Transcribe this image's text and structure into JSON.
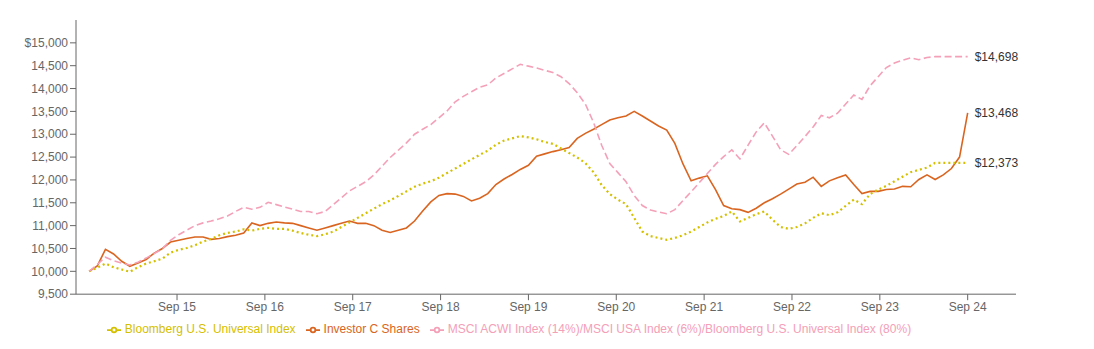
{
  "chart_data": {
    "type": "line",
    "x": [
      0,
      1,
      2,
      3,
      4,
      5,
      6,
      7,
      8,
      9,
      10,
      11,
      12,
      13,
      14,
      15,
      16,
      17,
      18,
      19,
      20,
      21,
      22,
      23,
      24,
      25,
      26,
      27,
      28,
      29,
      30,
      31,
      32,
      33,
      34,
      35,
      36,
      37,
      38,
      39,
      40,
      41,
      42,
      43,
      44,
      45,
      46,
      47,
      48,
      49,
      50,
      51,
      52,
      53,
      54,
      55,
      56,
      57,
      58,
      59,
      60,
      61,
      62,
      63,
      64,
      65,
      66,
      67,
      68,
      69,
      70,
      71,
      72,
      73,
      74,
      75,
      76,
      77,
      78,
      79,
      80,
      81,
      82,
      83,
      84,
      85,
      86,
      87,
      88,
      89,
      90,
      91,
      92,
      93,
      94,
      95,
      96,
      97,
      98,
      99,
      100,
      101,
      102,
      103,
      104,
      105,
      106,
      107,
      108
    ],
    "xlim": [
      -1.62,
      113.94
    ],
    "xticks": [
      {
        "value": 10.8,
        "label": "Sep 15"
      },
      {
        "value": 21.6,
        "label": "Sep 16"
      },
      {
        "value": 32.4,
        "label": "Sep 17"
      },
      {
        "value": 43.2,
        "label": "Sep 18"
      },
      {
        "value": 54,
        "label": "Sep 19"
      },
      {
        "value": 64.8,
        "label": "Sep 20"
      },
      {
        "value": 75.6,
        "label": "Sep 21"
      },
      {
        "value": 86.4,
        "label": "Sep 22"
      },
      {
        "value": 97.2,
        "label": "Sep 23"
      },
      {
        "value": 108,
        "label": "Sep 24"
      }
    ],
    "ylim": [
      9500,
      15500
    ],
    "yticks": [
      {
        "value": 9500,
        "label": "9,500"
      },
      {
        "value": 10000,
        "label": "10,000"
      },
      {
        "value": 10500,
        "label": "10,500"
      },
      {
        "value": 11000,
        "label": "11,000"
      },
      {
        "value": 11500,
        "label": "11,500"
      },
      {
        "value": 12000,
        "label": "12,000"
      },
      {
        "value": 12500,
        "label": "12,500"
      },
      {
        "value": 13000,
        "label": "13,000"
      },
      {
        "value": 13500,
        "label": "13,500"
      },
      {
        "value": 14000,
        "label": "14,000"
      },
      {
        "value": 14500,
        "label": "14,500"
      },
      {
        "value": 15000,
        "label": "$15,000"
      }
    ],
    "grid": false,
    "legend": "bottom",
    "series": [
      {
        "name": "Investor C Shares",
        "color": "#D96520",
        "line_style": "solid",
        "values": [
          10000,
          10120,
          10480,
          10380,
          10220,
          10110,
          10180,
          10260,
          10400,
          10500,
          10640,
          10680,
          10720,
          10750,
          10750,
          10700,
          10720,
          10760,
          10790,
          10840,
          11060,
          11000,
          11050,
          11080,
          11060,
          11050,
          11000,
          10950,
          10900,
          10950,
          11000,
          11050,
          11100,
          11050,
          11050,
          11000,
          10900,
          10850,
          10900,
          10950,
          11100,
          11320,
          11520,
          11660,
          11700,
          11690,
          11640,
          11540,
          11600,
          11700,
          11900,
          12020,
          12120,
          12230,
          12320,
          12520,
          12570,
          12620,
          12660,
          12710,
          12910,
          13020,
          13110,
          13210,
          13310,
          13360,
          13400,
          13500,
          13400,
          13290,
          13180,
          13090,
          12800,
          12350,
          11980,
          12040,
          12090,
          11790,
          11440,
          11370,
          11350,
          11290,
          11380,
          11500,
          11590,
          11690,
          11800,
          11910,
          11950,
          12060,
          11860,
          11980,
          12050,
          12110,
          11900,
          11700,
          11750,
          11750,
          11790,
          11800,
          11860,
          11850,
          12010,
          12110,
          12010,
          12110,
          12250,
          12500,
          13468
        ]
      },
      {
        "name": "Bloomberg U.S. Universal Index",
        "color": "#D4C000",
        "line_style": "dotted",
        "values": [
          10000,
          10080,
          10170,
          10090,
          10040,
          9990,
          10090,
          10170,
          10220,
          10280,
          10410,
          10470,
          10510,
          10570,
          10650,
          10710,
          10790,
          10840,
          10870,
          10920,
          10890,
          10930,
          10950,
          10930,
          10930,
          10890,
          10840,
          10800,
          10770,
          10810,
          10870,
          10970,
          11070,
          11170,
          11270,
          11370,
          11470,
          11550,
          11650,
          11750,
          11850,
          11920,
          11970,
          12050,
          12150,
          12250,
          12350,
          12450,
          12550,
          12640,
          12770,
          12860,
          12910,
          12960,
          12930,
          12890,
          12830,
          12790,
          12690,
          12590,
          12490,
          12370,
          12170,
          11890,
          11690,
          11570,
          11470,
          11170,
          10870,
          10770,
          10730,
          10690,
          10730,
          10790,
          10870,
          10970,
          11070,
          11150,
          11210,
          11310,
          11090,
          11170,
          11250,
          11310,
          11130,
          10970,
          10930,
          10970,
          11050,
          11170,
          11270,
          11230,
          11290,
          11430,
          11570,
          11470,
          11690,
          11790,
          11870,
          11970,
          12070,
          12170,
          12220,
          12270,
          12373,
          12373,
          12373,
          12373,
          12373
        ]
      },
      {
        "name": "MSCI ACWI Index (14%)/MSCI USA Index (6%)/Bloomberg U.S. Universal Index (80%)",
        "color": "#F4A0B8",
        "line_style": "dashed",
        "values": [
          10000,
          10150,
          10310,
          10230,
          10180,
          10140,
          10200,
          10290,
          10390,
          10490,
          10680,
          10800,
          10900,
          11000,
          11060,
          11100,
          11150,
          11210,
          11310,
          11400,
          11360,
          11400,
          11510,
          11460,
          11410,
          11360,
          11310,
          11310,
          11260,
          11310,
          11460,
          11610,
          11760,
          11860,
          11960,
          12110,
          12300,
          12490,
          12650,
          12810,
          13000,
          13110,
          13210,
          13360,
          13510,
          13710,
          13830,
          13930,
          14030,
          14080,
          14230,
          14330,
          14430,
          14530,
          14490,
          14450,
          14400,
          14350,
          14260,
          14110,
          13910,
          13660,
          13260,
          12760,
          12360,
          12160,
          11960,
          11660,
          11440,
          11340,
          11300,
          11260,
          11350,
          11550,
          11740,
          11940,
          12140,
          12340,
          12510,
          12660,
          12460,
          12760,
          13050,
          13250,
          12960,
          12660,
          12560,
          12750,
          12950,
          13160,
          13410,
          13360,
          13460,
          13660,
          13860,
          13760,
          14060,
          14260,
          14460,
          14560,
          14620,
          14670,
          14630,
          14680,
          14698,
          14698,
          14698,
          14698,
          14698
        ]
      }
    ],
    "annotations": [
      {
        "text": "$14,698",
        "x": 108,
        "y": 14698
      },
      {
        "text": "$13,468",
        "x": 108,
        "y": 13468
      },
      {
        "text": "$12,373",
        "x": 108,
        "y": 12373
      }
    ]
  }
}
